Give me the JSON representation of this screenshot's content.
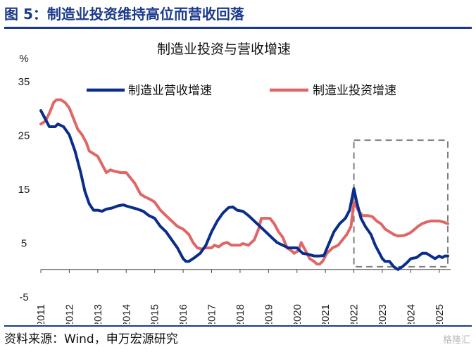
{
  "figure": {
    "title": "图 5：制造业投资维持高位而营收回落",
    "source": "资料来源：Wind，申万宏源研究",
    "watermark": "格隆汇"
  },
  "chart_data": {
    "type": "line",
    "title": "制造业投资与营收增速",
    "ylabel": "%",
    "xlabel": "",
    "ylim": [
      -5,
      35
    ],
    "xlim": [
      2011.0,
      2025.4
    ],
    "yticks": [
      -5,
      5,
      15,
      25,
      35
    ],
    "xticks": [
      "2011",
      "2012",
      "2013",
      "2014",
      "2015",
      "2016",
      "2017",
      "2018",
      "2019",
      "2020",
      "2021",
      "2022",
      "2023",
      "2024",
      "2025"
    ],
    "grid": false,
    "legend": "top",
    "highlight_box": {
      "x": [
        2022.0,
        2025.3
      ],
      "y": [
        0.5,
        24
      ]
    },
    "series": [
      {
        "name": "制造业营收增速",
        "color": "#0a2d8c",
        "points": [
          [
            2011.0,
            29.5
          ],
          [
            2011.15,
            28
          ],
          [
            2011.3,
            26.5
          ],
          [
            2011.5,
            26.5
          ],
          [
            2011.6,
            27
          ],
          [
            2011.8,
            26.5
          ],
          [
            2012.0,
            25
          ],
          [
            2012.2,
            22
          ],
          [
            2012.4,
            18
          ],
          [
            2012.55,
            14.5
          ],
          [
            2012.7,
            12.2
          ],
          [
            2012.85,
            11
          ],
          [
            2013.0,
            11
          ],
          [
            2013.15,
            10.8
          ],
          [
            2013.3,
            11.2
          ],
          [
            2013.5,
            11.4
          ],
          [
            2013.7,
            11.8
          ],
          [
            2013.9,
            12
          ],
          [
            2014.0,
            11.8
          ],
          [
            2014.2,
            11.5
          ],
          [
            2014.4,
            11.2
          ],
          [
            2014.6,
            10.8
          ],
          [
            2014.8,
            10
          ],
          [
            2015.0,
            9.5
          ],
          [
            2015.2,
            8
          ],
          [
            2015.4,
            7
          ],
          [
            2015.6,
            5.5
          ],
          [
            2015.8,
            4
          ],
          [
            2016.0,
            2
          ],
          [
            2016.1,
            1.5
          ],
          [
            2016.2,
            1.5
          ],
          [
            2016.4,
            2.2
          ],
          [
            2016.6,
            3
          ],
          [
            2016.8,
            4.5
          ],
          [
            2017.0,
            7
          ],
          [
            2017.2,
            9
          ],
          [
            2017.4,
            10.5
          ],
          [
            2017.6,
            11.5
          ],
          [
            2017.75,
            11.6
          ],
          [
            2017.9,
            11
          ],
          [
            2018.1,
            10.8
          ],
          [
            2018.3,
            10
          ],
          [
            2018.5,
            9
          ],
          [
            2018.7,
            8
          ],
          [
            2018.9,
            7
          ],
          [
            2019.1,
            6
          ],
          [
            2019.3,
            5
          ],
          [
            2019.5,
            4.5
          ],
          [
            2019.7,
            4
          ],
          [
            2019.9,
            4
          ],
          [
            2020.0,
            4
          ],
          [
            2020.2,
            3
          ],
          [
            2020.4,
            2.8
          ],
          [
            2020.6,
            2.5
          ],
          [
            2020.8,
            2.5
          ],
          [
            2020.95,
            2.6
          ],
          [
            2021.1,
            4.5
          ],
          [
            2021.3,
            7
          ],
          [
            2021.5,
            8.5
          ],
          [
            2021.7,
            9.5
          ],
          [
            2021.85,
            11
          ],
          [
            2022.0,
            15
          ],
          [
            2022.1,
            12.5
          ],
          [
            2022.25,
            9.5
          ],
          [
            2022.4,
            8
          ],
          [
            2022.6,
            6.5
          ],
          [
            2022.75,
            4.5
          ],
          [
            2022.9,
            3
          ],
          [
            2023.0,
            2
          ],
          [
            2023.1,
            1.5
          ],
          [
            2023.25,
            1.5
          ],
          [
            2023.4,
            0.5
          ],
          [
            2023.55,
            0
          ],
          [
            2023.7,
            0.5
          ],
          [
            2023.85,
            1.2
          ],
          [
            2024.0,
            2
          ],
          [
            2024.2,
            2.2
          ],
          [
            2024.4,
            3
          ],
          [
            2024.55,
            3
          ],
          [
            2024.7,
            2.5
          ],
          [
            2024.85,
            2
          ],
          [
            2025.0,
            2.5
          ],
          [
            2025.1,
            2.2
          ],
          [
            2025.2,
            2.5
          ],
          [
            2025.3,
            2.5
          ]
        ]
      },
      {
        "name": "制造业投资增速",
        "color": "#e06666",
        "points": [
          [
            2011.0,
            27
          ],
          [
            2011.15,
            27.5
          ],
          [
            2011.3,
            29
          ],
          [
            2011.45,
            31
          ],
          [
            2011.55,
            31.5
          ],
          [
            2011.7,
            31.5
          ],
          [
            2011.85,
            31
          ],
          [
            2012.0,
            30
          ],
          [
            2012.15,
            28
          ],
          [
            2012.3,
            26
          ],
          [
            2012.45,
            25
          ],
          [
            2012.6,
            23.5
          ],
          [
            2012.7,
            22
          ],
          [
            2012.85,
            21.5
          ],
          [
            2013.0,
            21
          ],
          [
            2013.15,
            19.5
          ],
          [
            2013.3,
            18
          ],
          [
            2013.45,
            18.5
          ],
          [
            2013.6,
            18.2
          ],
          [
            2013.8,
            18
          ],
          [
            2014.0,
            18
          ],
          [
            2014.15,
            17
          ],
          [
            2014.3,
            16
          ],
          [
            2014.5,
            14
          ],
          [
            2014.65,
            13.5
          ],
          [
            2014.85,
            13
          ],
          [
            2015.0,
            12.5
          ],
          [
            2015.2,
            11
          ],
          [
            2015.4,
            10
          ],
          [
            2015.6,
            9
          ],
          [
            2015.8,
            8
          ],
          [
            2016.0,
            7.5
          ],
          [
            2016.2,
            6.5
          ],
          [
            2016.35,
            5
          ],
          [
            2016.5,
            4
          ],
          [
            2016.65,
            3.8
          ],
          [
            2016.8,
            4
          ],
          [
            2017.0,
            4
          ],
          [
            2017.1,
            4.5
          ],
          [
            2017.25,
            4.2
          ],
          [
            2017.4,
            4.8
          ],
          [
            2017.55,
            5
          ],
          [
            2017.7,
            4.5
          ],
          [
            2017.85,
            4.5
          ],
          [
            2018.0,
            4.5
          ],
          [
            2018.1,
            4.8
          ],
          [
            2018.3,
            4.5
          ],
          [
            2018.5,
            5.5
          ],
          [
            2018.65,
            7.5
          ],
          [
            2018.75,
            9.5
          ],
          [
            2018.9,
            9.5
          ],
          [
            2019.05,
            9.5
          ],
          [
            2019.2,
            8.5
          ],
          [
            2019.35,
            7
          ],
          [
            2019.5,
            6
          ],
          [
            2019.65,
            4
          ],
          [
            2019.8,
            3.5
          ],
          [
            2019.9,
            3
          ],
          [
            2020.05,
            3.5
          ],
          [
            2020.15,
            5
          ],
          [
            2020.3,
            3.5
          ],
          [
            2020.45,
            2
          ],
          [
            2020.6,
            1.5
          ],
          [
            2020.7,
            1
          ],
          [
            2020.8,
            1
          ],
          [
            2020.9,
            1.5
          ],
          [
            2021.05,
            3
          ],
          [
            2021.25,
            4
          ],
          [
            2021.45,
            4.5
          ],
          [
            2021.6,
            5.5
          ],
          [
            2021.75,
            6.5
          ],
          [
            2021.9,
            8
          ],
          [
            2022.0,
            12.5
          ],
          [
            2022.15,
            11
          ],
          [
            2022.3,
            10
          ],
          [
            2022.5,
            10
          ],
          [
            2022.65,
            9.8
          ],
          [
            2022.8,
            9
          ],
          [
            2022.95,
            8.5
          ],
          [
            2023.1,
            7.5
          ],
          [
            2023.25,
            7
          ],
          [
            2023.4,
            6.5
          ],
          [
            2023.55,
            6.2
          ],
          [
            2023.75,
            6.3
          ],
          [
            2023.95,
            6.7
          ],
          [
            2024.1,
            7.3
          ],
          [
            2024.25,
            8
          ],
          [
            2024.4,
            8.5
          ],
          [
            2024.55,
            8.8
          ],
          [
            2024.7,
            9
          ],
          [
            2024.85,
            9
          ],
          [
            2025.0,
            9
          ],
          [
            2025.15,
            8.8
          ],
          [
            2025.3,
            8.5
          ]
        ]
      }
    ]
  }
}
